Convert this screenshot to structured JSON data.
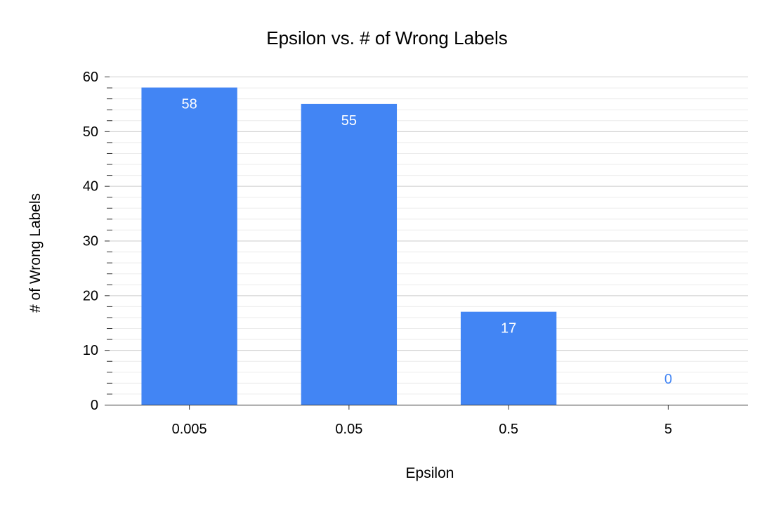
{
  "chart_data": {
    "type": "bar",
    "title": "Epsilon vs. # of Wrong Labels",
    "xlabel": "Epsilon",
    "ylabel": "# of Wrong Labels",
    "categories": [
      "0.005",
      "0.05",
      "0.5",
      "5"
    ],
    "values": [
      58,
      55,
      17,
      0
    ],
    "data_labels": [
      "58",
      "55",
      "17",
      "0"
    ],
    "ylim": [
      0,
      60
    ],
    "y_ticks": [
      0,
      10,
      20,
      30,
      40,
      50,
      60
    ],
    "y_tick_labels": [
      "0",
      "10",
      "20",
      "30",
      "40",
      "50",
      "60"
    ],
    "y_minor_step": 2,
    "grid": true,
    "legend": "none",
    "colors": {
      "bar": "#4285f4",
      "label_inside": "#ffffff",
      "label_outside": "#4285f4",
      "major_grid": "#cccccc",
      "minor_grid": "#ebebeb",
      "axis": "#333333"
    }
  }
}
